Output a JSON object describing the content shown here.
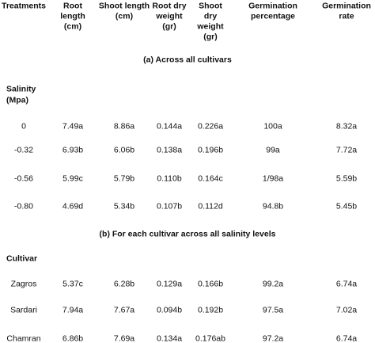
{
  "table": {
    "header": [
      [
        "Treatments"
      ],
      [
        "Root",
        "length",
        "(cm)"
      ],
      [
        "Shoot length",
        "(cm)"
      ],
      [
        "Root dry",
        "weight",
        "(gr)"
      ],
      [
        "Shoot",
        "dry",
        "weight",
        "(gr)"
      ],
      [
        "Germination",
        "percentage"
      ],
      [
        "Germination",
        "rate"
      ]
    ],
    "sections": [
      {
        "title": "(a) Across all cultivars",
        "group_label": [
          "Salinity",
          "(Mpa)"
        ],
        "rows": [
          [
            "0",
            "7.49a",
            "8.86a",
            "0.144a",
            "0.226a",
            "100a",
            "8.32a"
          ],
          [
            "-0.32",
            "6.93b",
            "6.06b",
            "0.138a",
            "0.196b",
            "99a",
            "7.72a"
          ],
          [
            "-0.56",
            "5.99c",
            "5.79b",
            "0.110b",
            "0.164c",
            "1/98a",
            "5.59b"
          ],
          [
            "-0.80",
            "4.69d",
            "5.34b",
            "0.107b",
            "0.112d",
            "94.8b",
            "5.45b"
          ]
        ]
      },
      {
        "title": "(b) For each cultivar across all salinity levels",
        "group_label": [
          "Cultivar"
        ],
        "rows": [
          [
            "Zagros",
            "5.37c",
            "6.28b",
            "0.129a",
            "0.166b",
            "99.2a",
            "6.74a"
          ],
          [
            "Sardari",
            "7.94a",
            "7.67a",
            "0.094b",
            "0.192b",
            "97.5a",
            "7.02a"
          ],
          [
            "Chamran",
            "6.86b",
            "7.69a",
            "0.134a",
            "0.176ab",
            "97.2a",
            "6.74a"
          ]
        ]
      }
    ]
  }
}
